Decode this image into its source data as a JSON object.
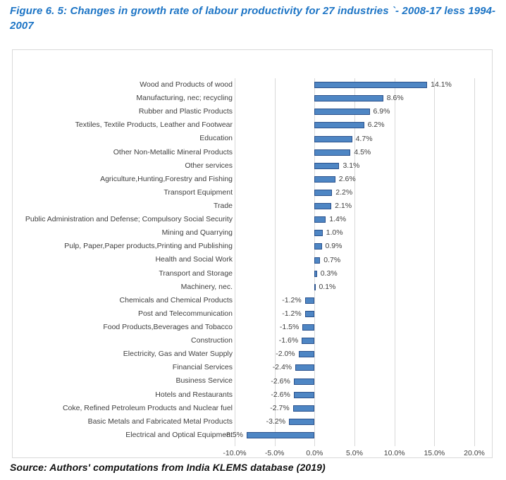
{
  "figure": {
    "title": "Figure 6. 5: Changes in growth rate of labour productivity for 27 industries `- 2008-17 less 1994-2007",
    "source": "Source: Authors' computations from India KLEMS database (2019)"
  },
  "chart_data": {
    "type": "bar",
    "orientation": "horizontal",
    "categories": [
      "Wood and Products of wood",
      "Manufacturing, nec; recycling",
      "Rubber and Plastic Products",
      "Textiles, Textile Products, Leather and Footwear",
      "Education",
      "Other Non-Metallic Mineral Products",
      "Other services",
      "Agriculture,Hunting,Forestry and Fishing",
      "Transport Equipment",
      "Trade",
      "Public Administration and Defense; Compulsory Social Security",
      "Mining and Quarrying",
      "Pulp, Paper,Paper products,Printing and Publishing",
      "Health and Social Work",
      "Transport and Storage",
      "Machinery, nec.",
      "Chemicals and  Chemical Products",
      "Post and Telecommunication",
      "Food Products,Beverages and Tobacco",
      "Construction",
      "Electricity, Gas and Water Supply",
      "Financial Services",
      "Business Service",
      "Hotels and Restaurants",
      "Coke, Refined Petroleum Products and Nuclear fuel",
      "Basic Metals and Fabricated Metal Products",
      "Electrical and Optical Equipment"
    ],
    "values": [
      14.1,
      8.6,
      6.9,
      6.2,
      4.7,
      4.5,
      3.1,
      2.6,
      2.2,
      2.1,
      1.4,
      1.0,
      0.9,
      0.7,
      0.3,
      0.1,
      -1.2,
      -1.2,
      -1.5,
      -1.6,
      -2.0,
      -2.4,
      -2.6,
      -2.6,
      -2.7,
      -3.2,
      -8.5
    ],
    "data_labels": [
      "14.1%",
      "8.6%",
      "6.9%",
      "6.2%",
      "4.7%",
      "4.5%",
      "3.1%",
      "2.6%",
      "2.2%",
      "2.1%",
      "1.4%",
      "1.0%",
      "0.9%",
      "0.7%",
      "0.3%",
      "0.1%",
      "-1.2%",
      "-1.2%",
      "-1.5%",
      "-1.6%",
      "-2.0%",
      "-2.4%",
      "-2.6%",
      "-2.6%",
      "-2.7%",
      "-3.2%",
      "-8.5%"
    ],
    "title": "",
    "xlabel": "",
    "ylabel": "",
    "xlim": [
      -10,
      20
    ],
    "x_tick_values": [
      -10,
      -5,
      0,
      5,
      10,
      15,
      20
    ],
    "x_tick_labels": [
      "-10.0%",
      "-5.0%",
      "0.0%",
      "5.0%",
      "10.0%",
      "15.0%",
      "20.0%"
    ],
    "grid": true,
    "legend": "none",
    "colors": {
      "bar_fill": "#4e86c4",
      "bar_border": "#2a518c",
      "gridline": "#d9d9d9",
      "frame_border": "#d9d9d9",
      "title_text": "#1c74c5",
      "axis_text": "#404040",
      "source_text": "#111111"
    }
  }
}
